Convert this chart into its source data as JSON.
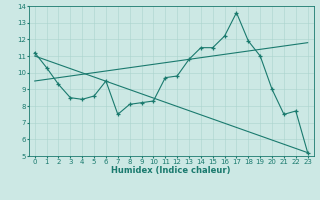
{
  "xlabel": "Humidex (Indice chaleur)",
  "xlim": [
    -0.5,
    23.5
  ],
  "ylim": [
    5,
    14
  ],
  "yticks": [
    5,
    6,
    7,
    8,
    9,
    10,
    11,
    12,
    13,
    14
  ],
  "xticks": [
    0,
    1,
    2,
    3,
    4,
    5,
    6,
    7,
    8,
    9,
    10,
    11,
    12,
    13,
    14,
    15,
    16,
    17,
    18,
    19,
    20,
    21,
    22,
    23
  ],
  "line_color": "#1a7a6e",
  "bg_color": "#cce8e4",
  "line1_x": [
    0,
    1,
    2,
    3,
    4,
    5,
    6,
    7,
    8,
    9,
    10,
    11,
    12,
    13,
    14,
    15,
    16,
    17,
    18,
    19,
    20,
    21,
    22,
    23
  ],
  "line1_y": [
    11.2,
    10.3,
    9.3,
    8.5,
    8.4,
    8.6,
    9.5,
    7.5,
    8.1,
    8.2,
    8.3,
    9.7,
    9.8,
    10.8,
    11.5,
    11.5,
    12.2,
    13.6,
    11.9,
    11.0,
    9.0,
    7.5,
    7.7,
    5.2
  ],
  "line2_x": [
    0,
    23
  ],
  "line2_y": [
    11.0,
    5.2
  ],
  "line3_x": [
    0,
    23
  ],
  "line3_y": [
    9.5,
    11.8
  ]
}
